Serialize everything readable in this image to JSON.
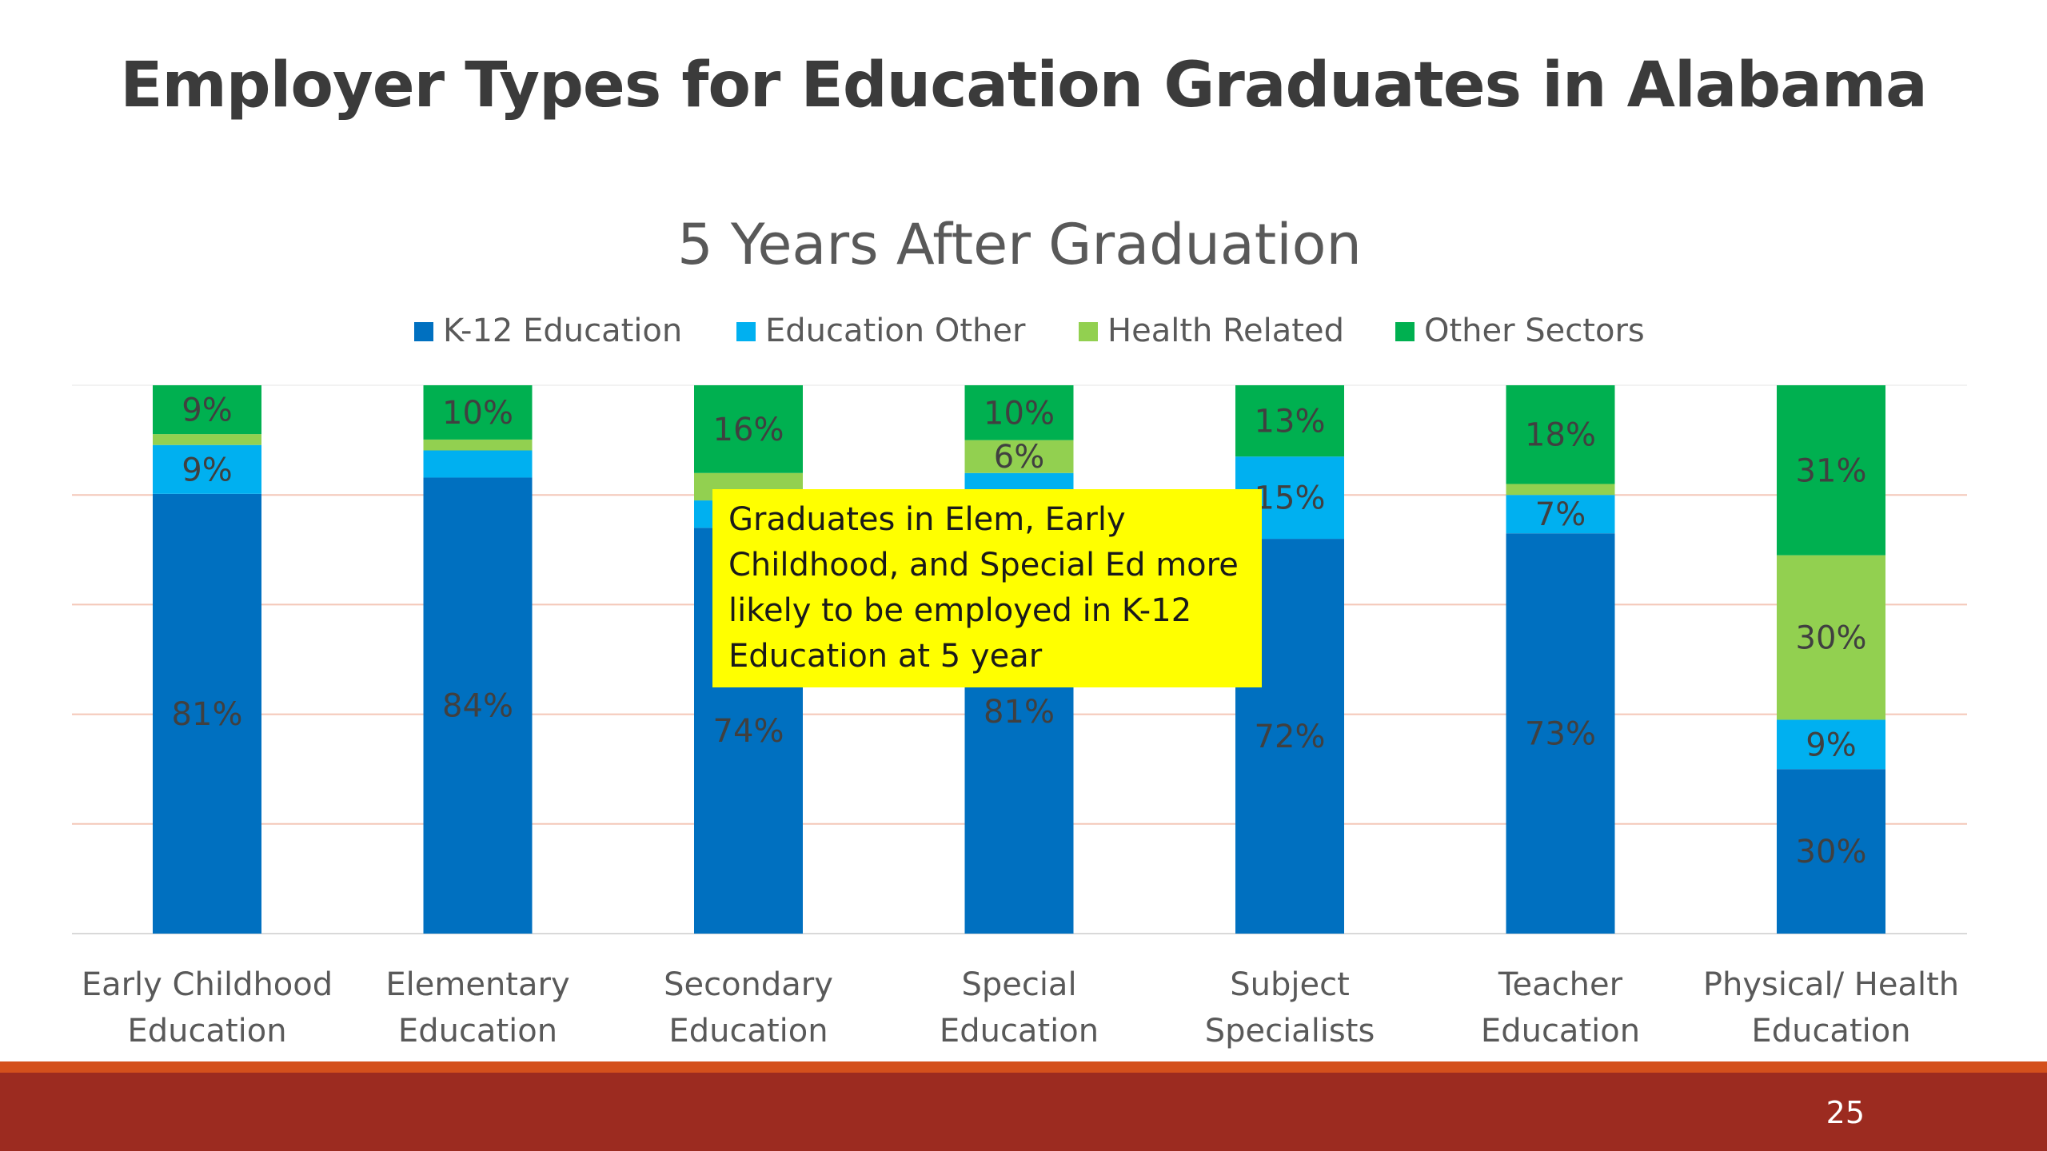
{
  "slide": {
    "title": "Employer Types for Education Graduates in Alabama",
    "page_number": "25",
    "callout": "Graduates in Elem, Early Childhood, and Special Ed more likely to be employed in K-12 Education at 5 year"
  },
  "colors": {
    "k12": "#0070c0",
    "edu_other": "#00b0f0",
    "health": "#92d050",
    "other": "#00b050",
    "gridline": "#f4c7b8",
    "footer_orange": "#d4501c",
    "footer_red": "#9c2b20",
    "callout": "#ffff00"
  },
  "chart_data": {
    "type": "bar",
    "stacked": true,
    "percent": true,
    "title": "5 Years After Graduation",
    "xlabel": "",
    "ylabel": "",
    "ylim": [
      0,
      100
    ],
    "legend_position": "top",
    "grid": true,
    "categories": [
      [
        "Early Childhood",
        "Education"
      ],
      [
        "Elementary",
        "Education"
      ],
      [
        "Secondary",
        "Education"
      ],
      [
        "Special",
        "Education"
      ],
      [
        "Subject",
        "Specialists"
      ],
      [
        "Teacher",
        "Education"
      ],
      [
        "Physical/ Health",
        "Education"
      ]
    ],
    "series": [
      {
        "name": "K-12 Education",
        "color": "#0070c0",
        "values": [
          81,
          84,
          74,
          81,
          72,
          73,
          30
        ],
        "labels": [
          "81%",
          "84%",
          "74%",
          "81%",
          "72%",
          "73%",
          "30%"
        ]
      },
      {
        "name": "Education Other",
        "color": "#00b0f0",
        "values": [
          9,
          5,
          5,
          3,
          15,
          7,
          9
        ],
        "labels": [
          "9%",
          "",
          "",
          "",
          "15%",
          "7%",
          "9%"
        ]
      },
      {
        "name": "Health Related",
        "color": "#92d050",
        "values": [
          2,
          2,
          5,
          6,
          0,
          2,
          30
        ],
        "labels": [
          "",
          "",
          "",
          "6%",
          "",
          "",
          "30%"
        ]
      },
      {
        "name": "Other Sectors",
        "color": "#00b050",
        "values": [
          9,
          10,
          16,
          10,
          13,
          18,
          31
        ],
        "labels": [
          "9%",
          "10%",
          "16%",
          "10%",
          "13%",
          "18%",
          "31%"
        ]
      }
    ]
  }
}
